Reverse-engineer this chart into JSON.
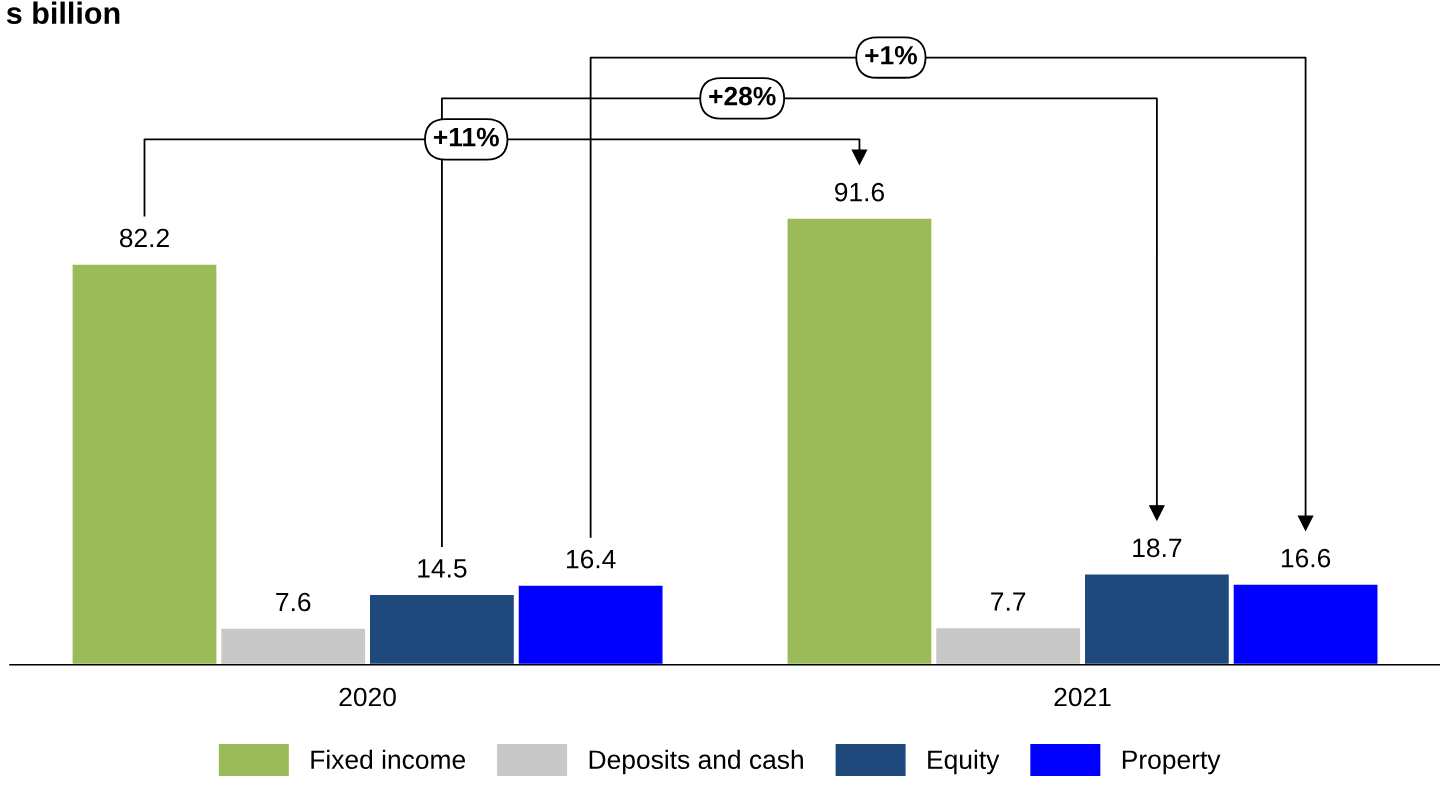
{
  "chart_data": {
    "type": "bar",
    "title": "s billion",
    "categories": [
      "2020",
      "2021"
    ],
    "series": [
      {
        "name": "Fixed income",
        "color": "#9bbb59",
        "values": [
          82.2,
          91.6
        ]
      },
      {
        "name": "Deposits and cash",
        "color": "#c8c8c8",
        "values": [
          7.6,
          7.7
        ]
      },
      {
        "name": "Equity",
        "color": "#1f497d",
        "values": [
          14.5,
          18.7
        ]
      },
      {
        "name": "Property",
        "color": "#0000ff",
        "values": [
          16.4,
          16.6
        ]
      }
    ],
    "data_labels": true,
    "legend": "bottom",
    "grid": false,
    "annotations": [
      "+11%",
      "+28%",
      "+1%"
    ]
  }
}
